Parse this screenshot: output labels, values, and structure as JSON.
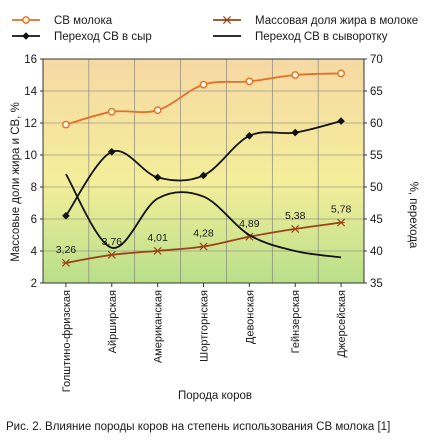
{
  "caption": "Рис. 2. Влияние породы коров на степень использования СВ молока [1]",
  "chart_data": {
    "type": "line",
    "xlabel": "Порода коров",
    "ylabel_left": "Массовые доли жира и СВ, %",
    "ylabel_right": "%, перехода",
    "ylim_left": [
      2,
      16
    ],
    "yticks_left": [
      "2",
      "4",
      "6",
      "8",
      "10",
      "12",
      "14",
      "16"
    ],
    "ylim_right": [
      35,
      70
    ],
    "yticks_right": [
      "35",
      "40",
      "45",
      "50",
      "55",
      "60",
      "65",
      "70"
    ],
    "categories": [
      "Голштино-фризская",
      "Айрширская",
      "Американская",
      "Шортгорнская",
      "Девонская",
      "Гейнзерская",
      "Джерсейская"
    ],
    "series": [
      {
        "name": "СВ молока",
        "axis": "left",
        "marker": "circle",
        "color": "#e2702a",
        "values": [
          11.9,
          12.7,
          12.8,
          14.4,
          14.6,
          15.0,
          15.1
        ]
      },
      {
        "name": "Массовая доля жира в молоке",
        "axis": "left",
        "marker": "star",
        "color": "#9a4418",
        "values": [
          3.26,
          3.76,
          4.01,
          4.28,
          4.89,
          5.38,
          5.78
        ],
        "labels": [
          "3,26",
          "3,76",
          "4,01",
          "4,28",
          "4,89",
          "5,38",
          "5,78"
        ]
      },
      {
        "name": "Переход СВ в сыр",
        "axis": "right",
        "marker": "diamond",
        "color": "#111111",
        "values": [
          45.5,
          55.5,
          51.5,
          51.8,
          58,
          58.5,
          60.3
        ]
      },
      {
        "name": "Переход СВ в сыворотку",
        "axis": "right",
        "marker": "none",
        "color": "#111111",
        "values": [
          52,
          40.5,
          48.2,
          48.5,
          42.5,
          40,
          39
        ]
      }
    ],
    "background_gradient": [
      "#f6d9a4",
      "#f4ee9a",
      "#b8df8a"
    ],
    "grid": true,
    "legend_position": "top"
  }
}
